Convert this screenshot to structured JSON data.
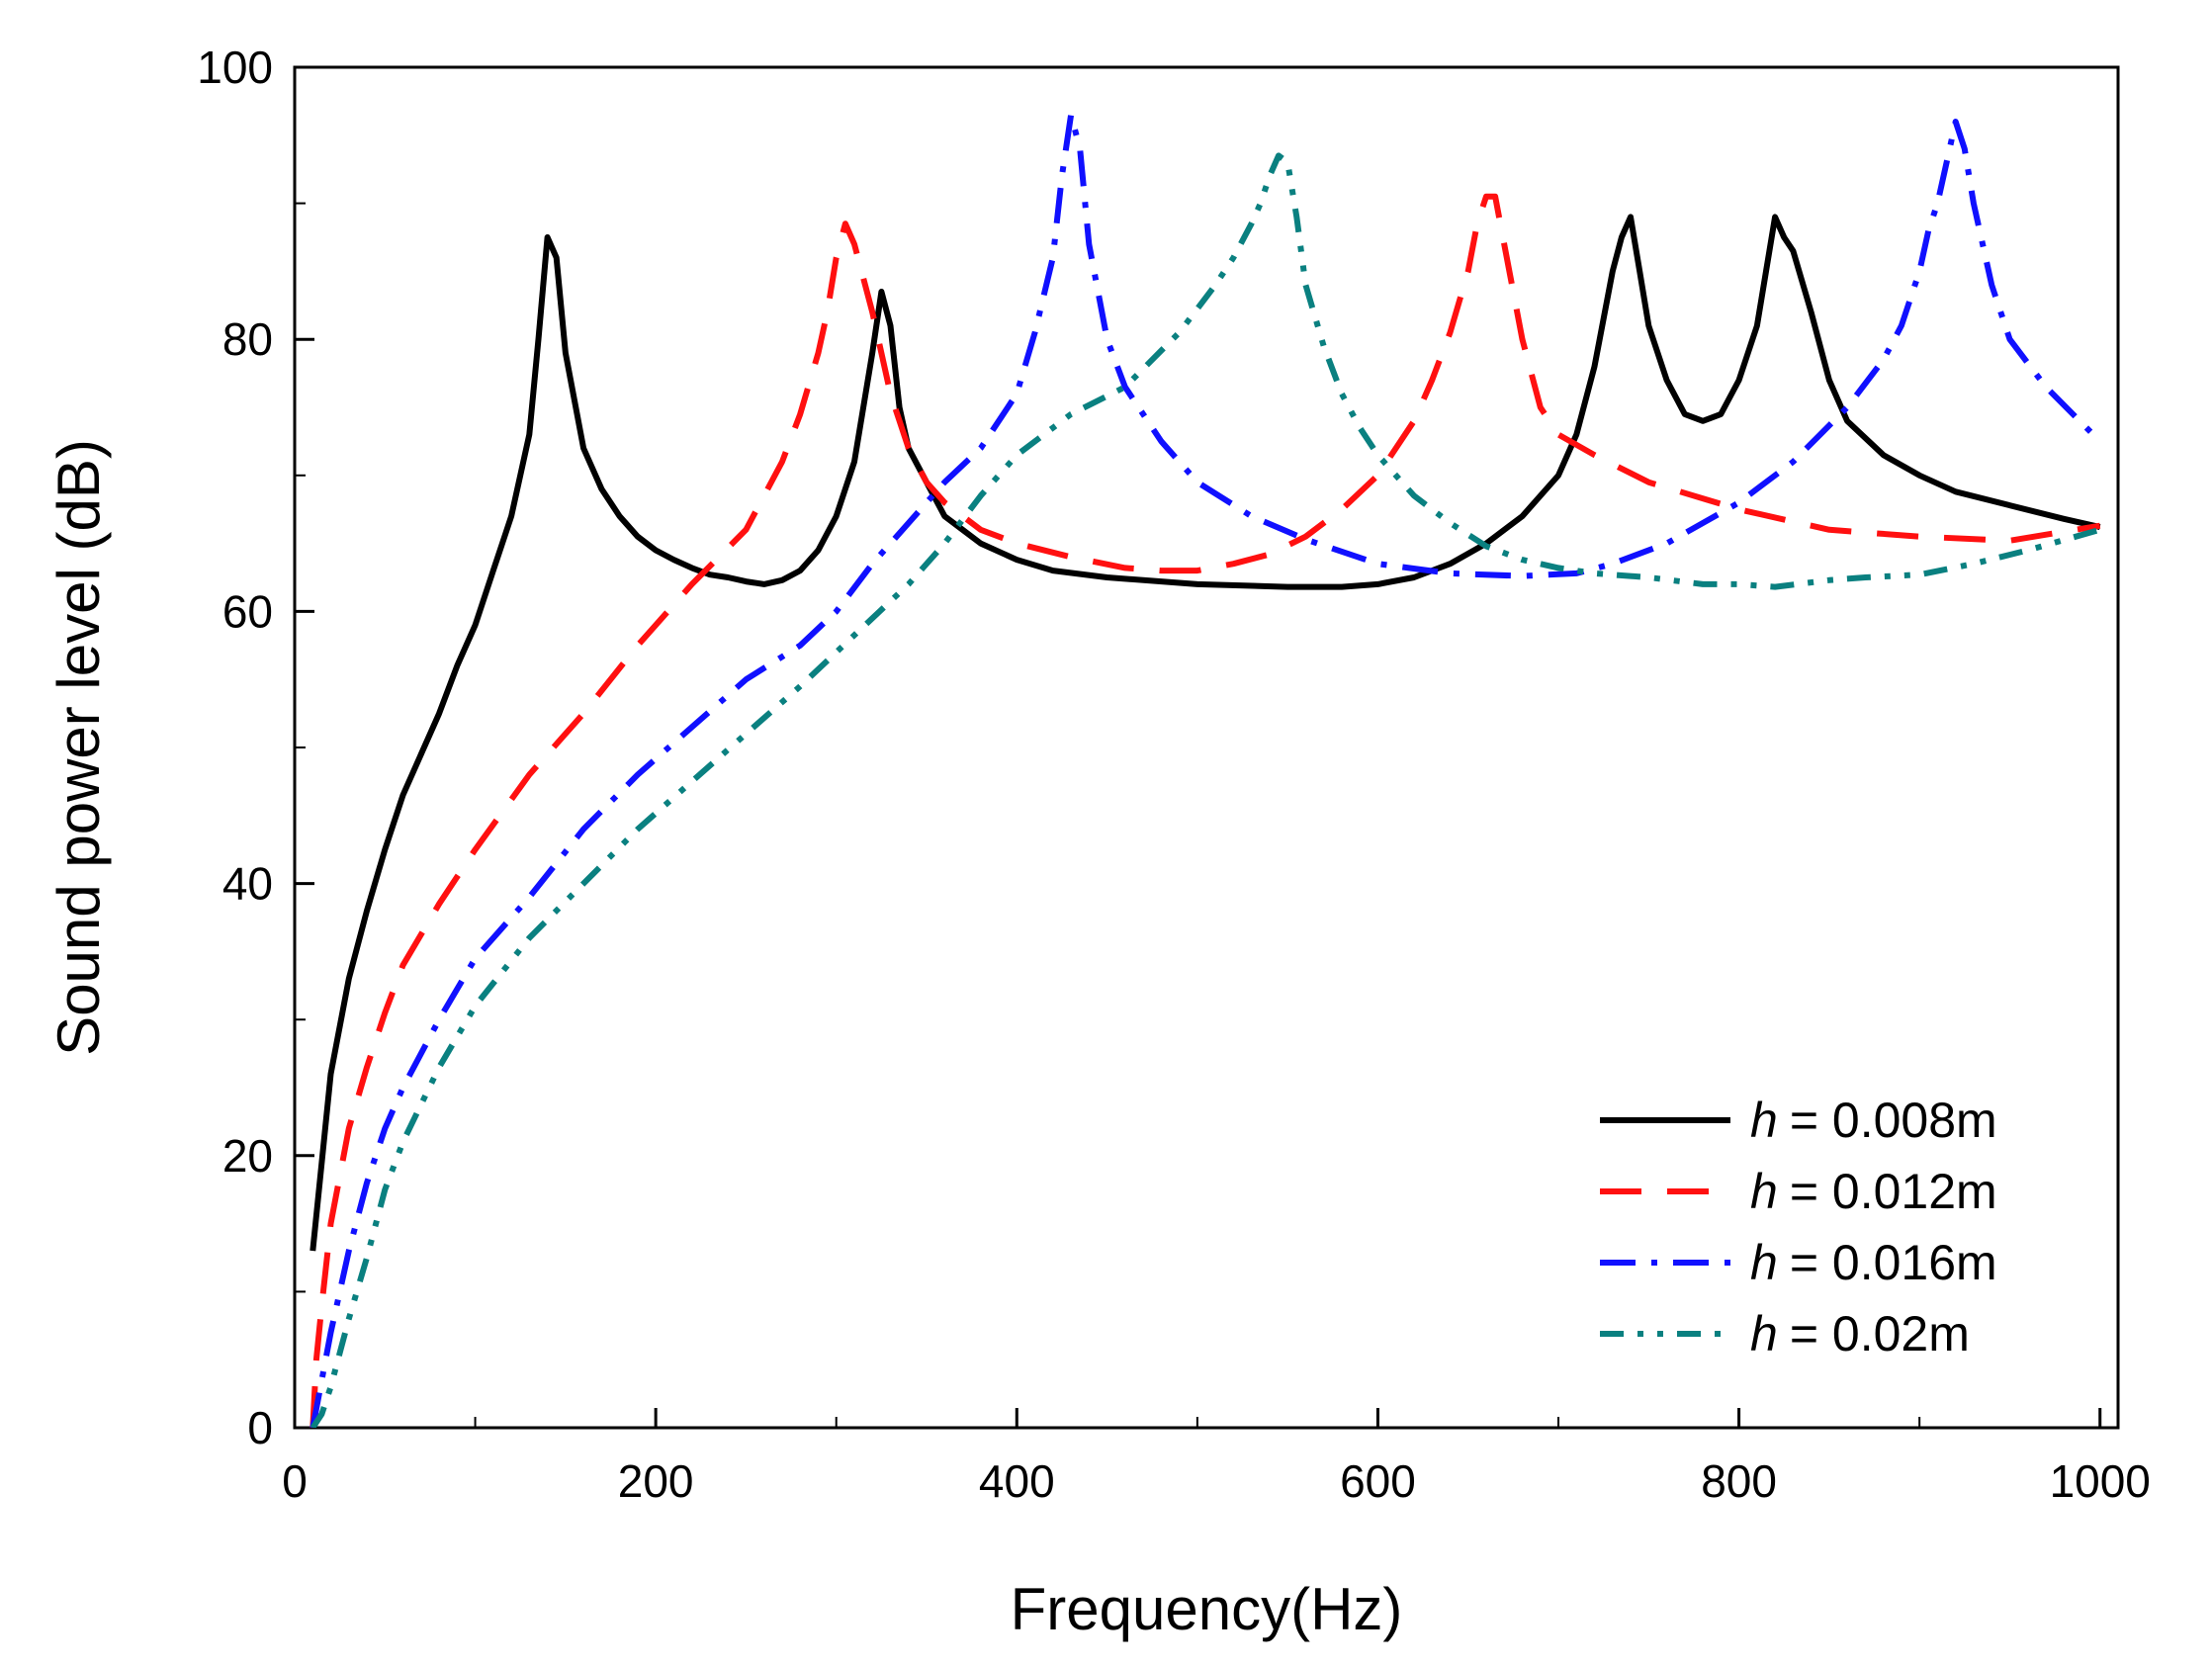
{
  "chart_data": {
    "type": "line",
    "title": "",
    "xlabel": "Frequency(Hz)",
    "ylabel": "Sound power level (dB)",
    "xlim": [
      0,
      1010
    ],
    "ylim": [
      0,
      100
    ],
    "xticks": [
      0,
      200,
      400,
      600,
      800,
      1000
    ],
    "yticks": [
      0,
      20,
      40,
      60,
      80,
      100
    ],
    "xtick_labels": [
      "0",
      "200",
      "400",
      "600",
      "800",
      "1000"
    ],
    "ytick_labels": [
      "0",
      "20",
      "40",
      "60",
      "80",
      "100"
    ],
    "legend_position": "bottom-right",
    "series": [
      {
        "name": "h = 0.008m",
        "var": "h",
        "value_text": "= 0.008m",
        "color": "#000000",
        "style": "solid",
        "x": [
          10,
          20,
          30,
          40,
          50,
          60,
          70,
          80,
          90,
          100,
          110,
          120,
          130,
          135,
          140,
          145,
          150,
          160,
          170,
          180,
          190,
          200,
          210,
          220,
          230,
          240,
          250,
          260,
          270,
          280,
          290,
          300,
          310,
          320,
          325,
          330,
          335,
          340,
          350,
          360,
          370,
          380,
          400,
          420,
          450,
          500,
          550,
          580,
          600,
          620,
          640,
          660,
          680,
          700,
          710,
          720,
          730,
          735,
          740,
          745,
          750,
          760,
          770,
          780,
          790,
          800,
          810,
          815,
          820,
          825,
          830,
          840,
          850,
          860,
          880,
          900,
          920,
          950,
          980,
          1000
        ],
        "y": [
          13,
          26,
          33,
          38,
          42.5,
          46.5,
          49.5,
          52.5,
          56,
          59,
          63,
          67,
          73,
          80,
          87.5,
          86,
          79,
          72,
          69,
          67,
          65.5,
          64.5,
          63.8,
          63.2,
          62.7,
          62.5,
          62.2,
          62,
          62.3,
          63,
          64.5,
          67,
          71,
          79,
          83.5,
          81,
          75,
          72,
          69.5,
          67,
          66,
          65,
          63.8,
          63,
          62.5,
          62,
          61.8,
          61.8,
          62,
          62.5,
          63.5,
          65,
          67,
          70,
          73,
          78,
          85,
          87.5,
          89,
          85,
          81,
          77,
          74.5,
          74,
          74.5,
          77,
          81,
          85,
          89,
          87.5,
          86.5,
          82,
          77,
          74,
          71.5,
          70,
          68.8,
          67.8,
          66.8,
          66.2
        ]
      },
      {
        "name": "h = 0.012m",
        "var": "h",
        "value_text": "= 0.012m",
        "color": "#ff1010",
        "style": "dashed",
        "x": [
          10,
          12,
          15,
          20,
          30,
          40,
          50,
          60,
          80,
          100,
          130,
          160,
          190,
          220,
          250,
          270,
          280,
          290,
          295,
          300,
          305,
          310,
          320,
          330,
          340,
          350,
          360,
          380,
          400,
          430,
          460,
          480,
          500,
          520,
          540,
          560,
          580,
          600,
          620,
          630,
          640,
          650,
          655,
          660,
          665,
          670,
          680,
          690,
          700,
          720,
          750,
          800,
          850,
          900,
          950,
          1000
        ],
        "y": [
          0,
          5,
          9,
          15,
          22,
          26.5,
          30.5,
          34,
          38.5,
          42.5,
          48,
          52.5,
          57.5,
          62,
          66,
          71,
          74.5,
          79,
          82,
          86,
          88.5,
          87,
          82,
          76,
          72,
          69.5,
          68,
          66,
          65,
          64,
          63.2,
          63,
          63,
          63.5,
          64.2,
          65.5,
          67.5,
          70,
          74,
          77,
          80.5,
          85,
          88.5,
          90.5,
          90.5,
          87,
          80,
          75,
          73,
          71.5,
          69.5,
          67.5,
          66,
          65.5,
          65.2,
          66.3
        ]
      },
      {
        "name": "h = 0.016m",
        "var": "h",
        "value_text": "= 0.016m",
        "color": "#1010ff",
        "style": "dashdot",
        "x": [
          10,
          15,
          20,
          30,
          40,
          50,
          60,
          80,
          100,
          130,
          160,
          190,
          220,
          250,
          280,
          300,
          320,
          340,
          360,
          380,
          400,
          410,
          420,
          425,
          430,
          435,
          440,
          450,
          460,
          480,
          500,
          530,
          560,
          600,
          640,
          680,
          710,
          730,
          760,
          800,
          830,
          860,
          880,
          890,
          900,
          905,
          910,
          915,
          920,
          925,
          930,
          940,
          950,
          970,
          1000
        ],
        "y": [
          0,
          3.5,
          7,
          13,
          18,
          22,
          25,
          30,
          34.5,
          39,
          44,
          48,
          51.5,
          55,
          57.5,
          60,
          63.5,
          66.5,
          69.5,
          72,
          76,
          80.5,
          86,
          92,
          96.5,
          94,
          87,
          80,
          76.5,
          72.5,
          69.5,
          67,
          65.3,
          63.5,
          62.8,
          62.6,
          62.8,
          63.5,
          65,
          68,
          71,
          75,
          78.5,
          81,
          85,
          88,
          90,
          93,
          96,
          94,
          90,
          84,
          80,
          76.5,
          72.5
        ]
      },
      {
        "name": "h = 0.02m",
        "var": "h",
        "value_text": "= 0.02m",
        "color": "#0a8080",
        "style": "dashdotdot",
        "x": [
          10,
          15,
          20,
          30,
          40,
          50,
          60,
          80,
          100,
          130,
          160,
          190,
          220,
          250,
          280,
          300,
          320,
          340,
          360,
          380,
          400,
          430,
          460,
          490,
          510,
          520,
          530,
          535,
          540,
          545,
          550,
          555,
          560,
          570,
          580,
          590,
          600,
          620,
          640,
          660,
          680,
          700,
          720,
          750,
          780,
          800,
          820,
          850,
          870,
          900,
          930,
          960,
          1000
        ],
        "y": [
          0,
          1,
          3,
          8,
          12.5,
          17.5,
          21,
          26.5,
          31,
          36,
          40,
          44,
          47.5,
          51,
          54.5,
          57,
          59.5,
          62,
          65,
          68.5,
          71.5,
          74.5,
          76.5,
          80.5,
          84,
          86,
          88.5,
          90,
          92,
          93.5,
          93,
          89,
          84,
          79.5,
          76,
          73.5,
          71.5,
          68.5,
          66.5,
          64.8,
          63.8,
          63.2,
          62.8,
          62.5,
          62,
          62,
          61.8,
          62.3,
          62.5,
          62.7,
          63.5,
          64.5,
          66
        ]
      }
    ]
  }
}
